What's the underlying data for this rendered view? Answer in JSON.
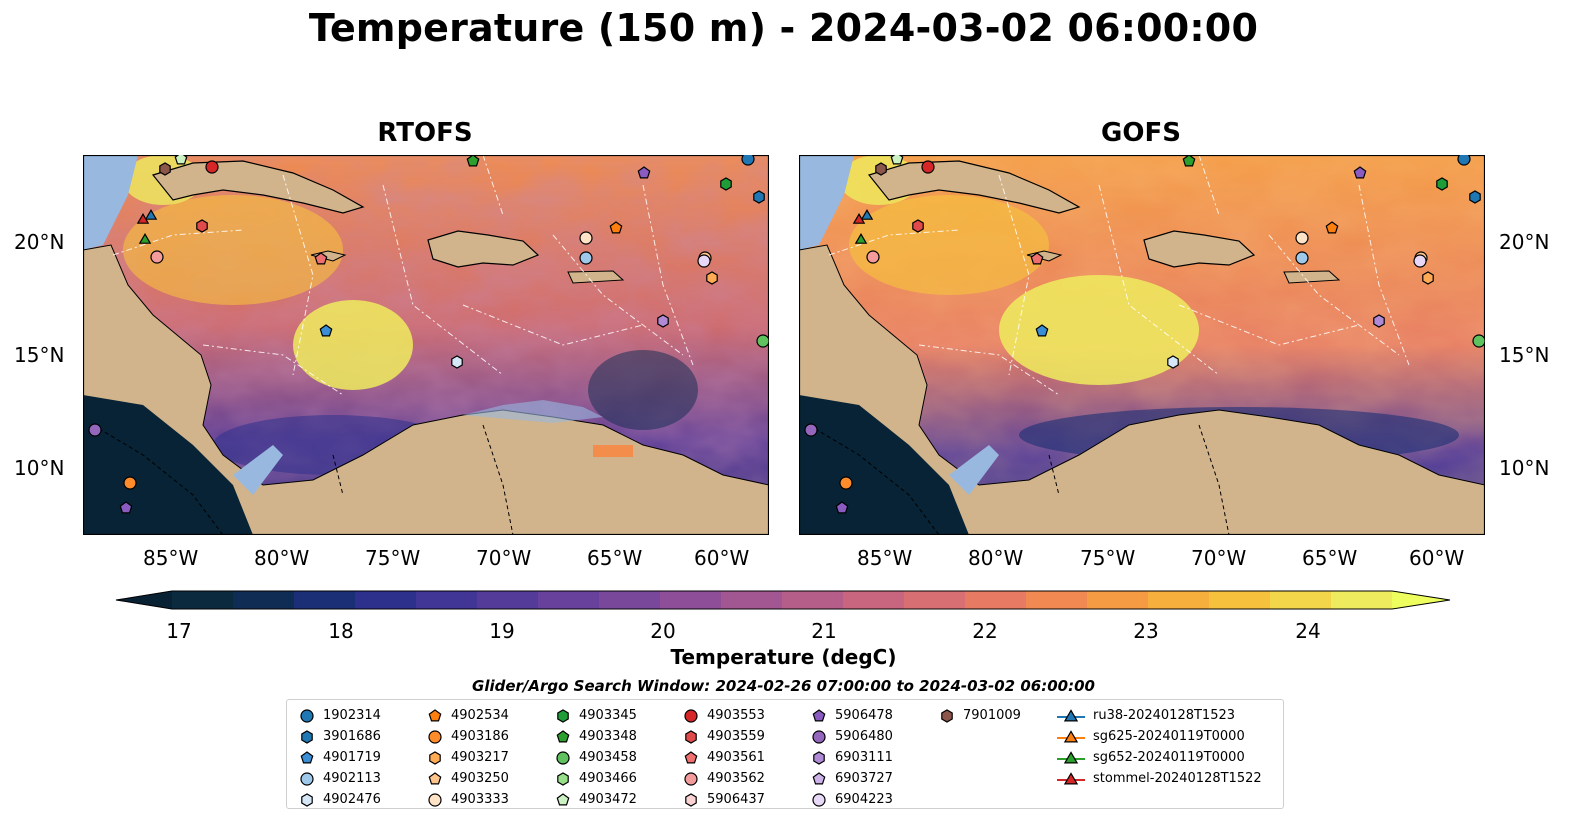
{
  "title": "Temperature (150 m) - 2024-03-02 06:00:00",
  "panels": [
    {
      "id": "rtofs",
      "title": "RTOFS"
    },
    {
      "id": "gofs",
      "title": "GOFS"
    }
  ],
  "lon_ticks": [
    "85°W",
    "80°W",
    "75°W",
    "70°W",
    "65°W",
    "60°W"
  ],
  "lat_ticks": [
    "20°N",
    "15°N",
    "10°N"
  ],
  "map_extent": {
    "lon": [
      -89.5,
      -58.0
    ],
    "lat": [
      7.0,
      23.8
    ]
  },
  "colorbar": {
    "label": "Temperature (degC)",
    "ticks": [
      "17",
      "18",
      "19",
      "20",
      "21",
      "22",
      "23",
      "24"
    ],
    "range": [
      16.5,
      24.5
    ],
    "colors": [
      "#0b2a3d",
      "#0f2c55",
      "#1a2f75",
      "#2e318c",
      "#413596",
      "#543b9a",
      "#67419c",
      "#7a489b",
      "#8e4f98",
      "#a25692",
      "#b65e8a",
      "#c8667f",
      "#d86f72",
      "#e67a62",
      "#f08a52",
      "#f49b43",
      "#f6ae3c",
      "#f6c23e",
      "#f4d64b",
      "#eeec5e"
    ]
  },
  "search_window": "Glider/Argo Search Window: 2024-02-26 07:00:00 to 2024-03-02 06:00:00",
  "legend": [
    {
      "label": "1902314",
      "marker": "circle",
      "color": "#1f77b4"
    },
    {
      "label": "3901686",
      "marker": "hexagon",
      "color": "#1f77b4"
    },
    {
      "label": "4901719",
      "marker": "pentagon",
      "color": "#3a8ed6"
    },
    {
      "label": "4902113",
      "marker": "circle",
      "color": "#9ec9eb"
    },
    {
      "label": "4902476",
      "marker": "hexagon",
      "color": "#d6e8f7"
    },
    {
      "label": "4902534",
      "marker": "pentagon",
      "color": "#ff7f0e"
    },
    {
      "label": "4903186",
      "marker": "circle",
      "color": "#ff8c2a"
    },
    {
      "label": "4903217",
      "marker": "hexagon",
      "color": "#ffaa55"
    },
    {
      "label": "4903250",
      "marker": "pentagon",
      "color": "#ffc48a"
    },
    {
      "label": "4903333",
      "marker": "circle",
      "color": "#ffe3c6"
    },
    {
      "label": "4903345",
      "marker": "hexagon",
      "color": "#1e9d38"
    },
    {
      "label": "4903348",
      "marker": "pentagon",
      "color": "#2ca02c"
    },
    {
      "label": "4903458",
      "marker": "circle",
      "color": "#5fc25f"
    },
    {
      "label": "4903466",
      "marker": "hexagon",
      "color": "#98df8a"
    },
    {
      "label": "4903472",
      "marker": "pentagon",
      "color": "#ccf2c4"
    },
    {
      "label": "4903553",
      "marker": "circle",
      "color": "#d62728"
    },
    {
      "label": "4903559",
      "marker": "hexagon",
      "color": "#e04a4a"
    },
    {
      "label": "4903561",
      "marker": "pentagon",
      "color": "#f07070"
    },
    {
      "label": "4903562",
      "marker": "circle",
      "color": "#f49b9b"
    },
    {
      "label": "5906437",
      "marker": "hexagon",
      "color": "#fbd2d2"
    },
    {
      "label": "5906478",
      "marker": "pentagon",
      "color": "#8a5cc2"
    },
    {
      "label": "5906480",
      "marker": "circle",
      "color": "#9467bd"
    },
    {
      "label": "6903111",
      "marker": "hexagon",
      "color": "#b08ad6"
    },
    {
      "label": "6903727",
      "marker": "pentagon",
      "color": "#cdb2ea"
    },
    {
      "label": "6904223",
      "marker": "circle",
      "color": "#e8d8f7"
    },
    {
      "label": "7901009",
      "marker": "hexagon",
      "color": "#8c564b"
    },
    {
      "label": "ru38-20240128T1523",
      "marker": "triangle",
      "color": "#1f77b4"
    },
    {
      "label": "sg625-20240119T0000",
      "marker": "triangle",
      "color": "#ff7f0e"
    },
    {
      "label": "sg652-20240119T0000",
      "marker": "triangle",
      "color": "#2ca02c"
    },
    {
      "label": "stommel-20240128T1522",
      "marker": "triangle",
      "color": "#d62728"
    }
  ]
}
